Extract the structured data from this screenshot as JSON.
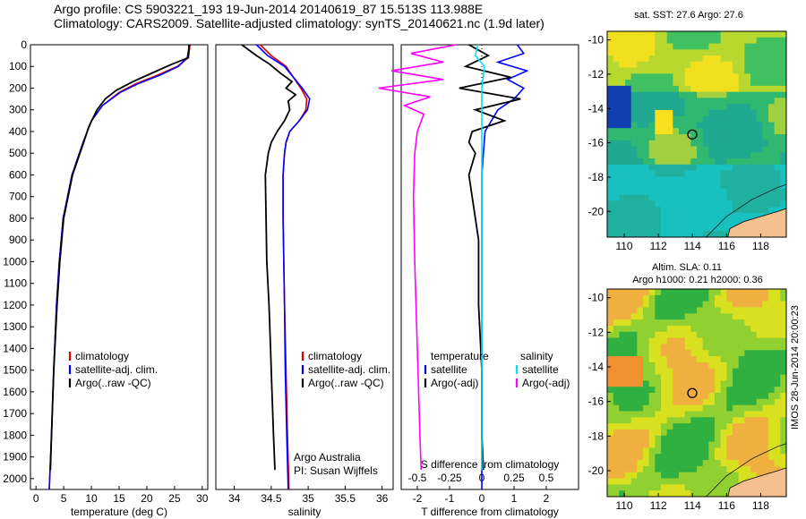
{
  "title_line1": "Argo profile: CS 5903221_193 19-Jun-2014 20140619_87 15.513S 113.988E",
  "title_line2": "Climatology: CARS2009. Satellite-adjusted climatology: synTS_20140621.nc (1.9d later)",
  "stamp": "IMOS 28-Jun-2014 20:00:23",
  "colors": {
    "climatology": "#e00000",
    "satellite": "#0000ff",
    "argo": "#000000",
    "sat_salinity": "#00e0ff",
    "argo_salinity": "#ff00ff",
    "land": "#f4c090"
  },
  "chart_data": [
    {
      "type": "line",
      "xlabel": "temperature (deg C)",
      "ylim": [
        2050,
        0
      ],
      "xlim": [
        -1,
        31
      ],
      "xticks": [
        "0",
        "5",
        "10",
        "15",
        "20",
        "25",
        "30"
      ],
      "yticks": [
        "0",
        "100",
        "200",
        "300",
        "400",
        "500",
        "600",
        "700",
        "800",
        "900",
        "1000",
        "1100",
        "1200",
        "1300",
        "1400",
        "1500",
        "1600",
        "1700",
        "1800",
        "1900",
        "2000"
      ],
      "legend": [
        "climatology",
        "satellite-adj. clim.",
        "Argo(..raw -QC)"
      ],
      "series": [
        {
          "name": "climatology",
          "depth": [
            0,
            60,
            100,
            140,
            180,
            220,
            280,
            350,
            450,
            600,
            800,
            1000,
            1200,
            1500,
            1800,
            2050
          ],
          "values": [
            27.8,
            27.5,
            25.5,
            22,
            18,
            15,
            12,
            10,
            8.5,
            6.5,
            4.9,
            4.2,
            3.7,
            3.2,
            2.8,
            2.4
          ]
        },
        {
          "name": "satellite-adj. clim.",
          "depth": [
            0,
            60,
            100,
            140,
            180,
            220,
            280,
            350,
            450,
            600,
            800,
            1000,
            1200,
            1500,
            1800,
            2050
          ],
          "values": [
            27.7,
            27.3,
            25.7,
            22.4,
            18.4,
            15.2,
            12,
            10,
            8.5,
            6.5,
            4.9,
            4.2,
            3.7,
            3.2,
            2.8,
            2.4
          ]
        },
        {
          "name": "Argo(..raw -QC)",
          "depth": [
            0,
            60,
            90,
            130,
            170,
            210,
            250,
            300,
            380,
            450,
            600,
            800,
            1000,
            1200,
            1500,
            1800,
            1960
          ],
          "values": [
            27.6,
            27.5,
            24.5,
            21,
            17.5,
            14.5,
            12.5,
            11,
            9.5,
            8.6,
            6.6,
            5,
            4.3,
            3.8,
            3.2,
            2.8,
            2.6
          ]
        }
      ]
    },
    {
      "type": "line",
      "xlabel": "salinity",
      "ylim": [
        2050,
        0
      ],
      "xlim": [
        33.75,
        36.15
      ],
      "xticks": [
        "34",
        "34.5",
        "35",
        "35.5",
        "36"
      ],
      "legend": [
        "climatology",
        "satellite-adj. clim.",
        "Argo(..raw -QC)"
      ],
      "annotation": [
        "Argo Australia",
        "PI: Susan Wijffels"
      ],
      "series": [
        {
          "name": "climatology",
          "depth": [
            0,
            50,
            100,
            150,
            200,
            250,
            300,
            350,
            400,
            450,
            500,
            600,
            800,
            1000,
            1200,
            1500,
            1800,
            2050
          ],
          "values": [
            34.35,
            34.5,
            34.7,
            34.8,
            34.9,
            34.98,
            34.97,
            34.88,
            34.75,
            34.7,
            34.68,
            34.66,
            34.66,
            34.67,
            34.68,
            34.7,
            34.72,
            34.74
          ]
        },
        {
          "name": "satellite-adj. clim.",
          "depth": [
            0,
            50,
            100,
            150,
            200,
            250,
            300,
            350,
            400,
            450,
            500,
            600,
            800,
            1000,
            1200,
            1500,
            1800,
            2050
          ],
          "values": [
            34.3,
            34.45,
            34.68,
            34.8,
            34.92,
            35.02,
            34.99,
            34.88,
            34.75,
            34.7,
            34.68,
            34.66,
            34.66,
            34.67,
            34.68,
            34.69,
            34.71,
            34.73
          ]
        },
        {
          "name": "Argo(..raw -QC)",
          "depth": [
            0,
            50,
            90,
            130,
            170,
            200,
            230,
            260,
            300,
            350,
            400,
            450,
            500,
            600,
            800,
            1000,
            1200,
            1400,
            1600,
            1800,
            1960
          ],
          "values": [
            34.1,
            34.3,
            34.48,
            34.62,
            34.78,
            34.7,
            34.83,
            34.73,
            34.75,
            34.68,
            34.58,
            34.5,
            34.46,
            34.42,
            34.43,
            34.44,
            34.47,
            34.49,
            34.51,
            34.53,
            34.55
          ]
        }
      ]
    },
    {
      "type": "line",
      "xlabel": "T difference from climatology",
      "xlabel2": "S difference from climatology",
      "ylim": [
        2050,
        0
      ],
      "xlim": [
        -2.5,
        3
      ],
      "xticks": [
        "-2",
        "-1",
        "0",
        "1",
        "2"
      ],
      "xticks2": [
        "-0.5",
        "-0.25",
        "0",
        "0.25",
        "0.5"
      ],
      "legend_titles": [
        "temperature",
        "salinity"
      ],
      "legend": [
        "satellite",
        "Argo(-adj)",
        "satellite",
        "Argo(-adj)"
      ],
      "series": [
        {
          "name": "temperature satellite",
          "depth": [
            0,
            40,
            80,
            120,
            160,
            200,
            250,
            300,
            400,
            600,
            1000,
            2050
          ],
          "values": [
            1.1,
            1.3,
            0.5,
            1.4,
            0.8,
            1.3,
            1.0,
            0.5,
            0.1,
            0,
            0,
            0
          ]
        },
        {
          "name": "temperature Argo(-adj)",
          "depth": [
            0,
            50,
            100,
            150,
            200,
            250,
            300,
            350,
            400,
            450,
            500,
            600,
            700,
            800,
            900,
            1000,
            1200,
            1500,
            1800,
            1960
          ],
          "values": [
            -0.4,
            0.2,
            -0.5,
            0.9,
            -0.7,
            1.2,
            -0.2,
            0.7,
            -0.3,
            -0.4,
            -0.2,
            -0.4,
            -0.3,
            -0.2,
            -0.1,
            -0.1,
            -0.1,
            0,
            0,
            0.05
          ]
        },
        {
          "name": "salinity satellite",
          "depth": [
            0,
            50,
            100,
            200,
            300,
            400,
            600,
            800,
            1000,
            1500,
            1960
          ],
          "values": [
            -0.03,
            -0.05,
            0.02,
            0,
            0,
            0,
            0,
            0,
            0,
            0,
            0
          ]
        },
        {
          "name": "salinity Argo(-adj)",
          "depth": [
            0,
            40,
            80,
            120,
            160,
            200,
            240,
            280,
            320,
            400,
            500,
            700,
            1000,
            1400,
            1800,
            1960
          ],
          "values": [
            -0.2,
            -0.55,
            -0.3,
            -0.7,
            -0.3,
            -0.8,
            -0.4,
            -0.6,
            -0.45,
            -0.5,
            -0.52,
            -0.53,
            -0.52,
            -0.5,
            -0.48,
            -0.47
          ]
        }
      ]
    },
    {
      "type": "heatmap",
      "title": "sat. SST: 27.6 Argo: 27.6",
      "xlim": [
        109,
        119.5
      ],
      "ylim": [
        -21.5,
        -9.5
      ],
      "xticks": [
        "110",
        "112",
        "114",
        "116",
        "118"
      ],
      "yticks": [
        "-10",
        "-12",
        "-14",
        "-16",
        "-18",
        "-20"
      ],
      "marker": [
        113.988,
        -15.513
      ]
    },
    {
      "type": "heatmap",
      "title": "Altim. SLA: 0.11",
      "subtitle": "Argo h1000: 0.21 h2000: 0.36",
      "xlim": [
        109,
        119.5
      ],
      "ylim": [
        -21.5,
        -9.5
      ],
      "xticks": [
        "110",
        "112",
        "114",
        "116",
        "118"
      ],
      "yticks": [
        "-10",
        "-12",
        "-14",
        "-16",
        "-18",
        "-20"
      ],
      "marker": [
        113.988,
        -15.513
      ]
    }
  ]
}
